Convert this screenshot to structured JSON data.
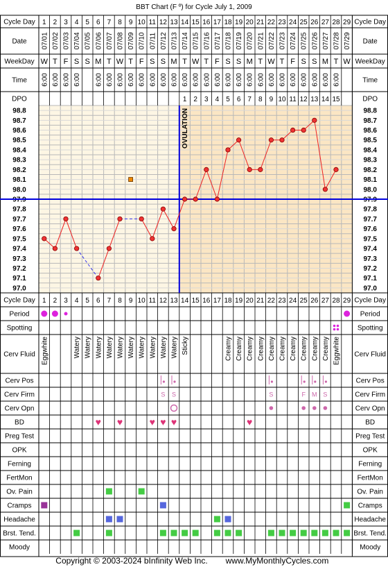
{
  "title": "BBT Chart (F º) for Cycle July 1, 2009",
  "footer": {
    "copyright": "Copyright © 2003-2024 bInfinity Web Inc.",
    "site": "www.MyMonthlyCycles.com"
  },
  "row_labels": {
    "cycle_day": "Cycle Day",
    "date": "Date",
    "weekday": "WeekDay",
    "time": "Time",
    "dpo": "DPO",
    "period": "Period",
    "spotting": "Spotting",
    "cerv_fluid": "Cerv Fluid",
    "cerv_pos": "Cerv Pos",
    "cerv_firm": "Cerv Firm",
    "cerv_opn": "Cerv Opn",
    "bd": "BD",
    "preg_test": "Preg Test",
    "opk": "OPK",
    "ferning": "Ferning",
    "fertmon": "FertMon",
    "ov_pain": "Ov. Pain",
    "cramps": "Cramps",
    "headache": "Headache",
    "brst_tend": "Brst. Tend.",
    "moody": "Moody"
  },
  "ovulation_label": "OVULATION",
  "colors": {
    "grid": "#b8b8b8",
    "pre_ov_bg": "#fdf6e4",
    "post_ov_bg": "#fbe6c4",
    "line": "#ee2020",
    "point_fill": "#ee3333",
    "dashed": "#3333ee",
    "coverline": "#0000dd",
    "period": "#dd22dd",
    "heart": "#dd3377",
    "green": "#44cc44",
    "blue_box": "#5566dd",
    "purple_box": "#993399",
    "orange_box": "#ee8800",
    "cervix": "#cc66aa"
  },
  "chart_data": {
    "type": "line",
    "x": [
      1,
      2,
      3,
      4,
      5,
      6,
      7,
      8,
      9,
      10,
      11,
      12,
      13,
      14,
      15,
      16,
      17,
      18,
      19,
      20,
      21,
      22,
      23,
      24,
      25,
      26,
      27,
      28,
      29
    ],
    "dates": [
      "07/01",
      "07/02",
      "07/03",
      "07/04",
      "07/05",
      "07/06",
      "07/07",
      "07/08",
      "07/09",
      "07/10",
      "07/11",
      "07/12",
      "07/13",
      "07/14",
      "07/15",
      "07/16",
      "07/17",
      "07/18",
      "07/19",
      "07/20",
      "07/21",
      "07/22",
      "07/23",
      "07/24",
      "07/25",
      "07/26",
      "07/27",
      "07/28",
      "07/29"
    ],
    "weekdays": [
      "W",
      "T",
      "F",
      "S",
      "S",
      "M",
      "T",
      "W",
      "T",
      "F",
      "S",
      "S",
      "M",
      "T",
      "W",
      "T",
      "F",
      "S",
      "S",
      "M",
      "T",
      "W",
      "T",
      "F",
      "S",
      "S",
      "M",
      "T",
      "W"
    ],
    "times": [
      "6:00",
      "6:00",
      "6:00",
      "6:00",
      "",
      "6:00",
      "6:00",
      "6:00",
      "6:00",
      "6:00",
      "6:00",
      "6:00",
      "6:00",
      "6:00",
      "6:00",
      "6:00",
      "6:00",
      "6:00",
      "6:00",
      "6:00",
      "6:00",
      "6:00",
      "6:00",
      "6:00",
      "6:00",
      "6:00",
      "6:00",
      "6:00",
      ""
    ],
    "dpo": [
      "",
      "",
      "",
      "",
      "",
      "",
      "",
      "",
      "",
      "",
      "",
      "",
      "",
      "1",
      "2",
      "3",
      "4",
      "5",
      "6",
      "7",
      "8",
      "9",
      "10",
      "11",
      "12",
      "13",
      "14",
      "15",
      ""
    ],
    "temps": [
      97.5,
      97.4,
      97.7,
      97.4,
      null,
      97.1,
      97.4,
      97.7,
      null,
      97.7,
      97.5,
      97.8,
      97.6,
      97.9,
      97.9,
      98.2,
      97.9,
      98.4,
      98.5,
      98.2,
      98.2,
      98.5,
      98.5,
      98.6,
      98.6,
      98.7,
      98.0,
      98.2,
      null
    ],
    "dashed_segments": [
      [
        4,
        97.4,
        6,
        97.1
      ],
      [
        8,
        97.7,
        10,
        97.7
      ]
    ],
    "discarded_temps": [
      {
        "day": 9,
        "temp": 98.1
      }
    ],
    "ylim": [
      97.0,
      98.8
    ],
    "yticks": [
      "98.8",
      "98.7",
      "98.6",
      "98.5",
      "98.4",
      "98.3",
      "98.2",
      "98.1",
      "98.0",
      "97.9",
      "97.8",
      "97.7",
      "97.6",
      "97.5",
      "97.4",
      "97.3",
      "97.2",
      "97.1",
      "97.0"
    ],
    "coverline": 97.9,
    "ovulation_day": 13,
    "grid": true
  },
  "observations": {
    "period": [
      {
        "day": 1,
        "size": "large"
      },
      {
        "day": 2,
        "size": "large"
      },
      {
        "day": 3,
        "size": "small"
      },
      {
        "day": 29,
        "size": "large"
      }
    ],
    "spotting": [
      28
    ],
    "cerv_fluid": [
      "Eggwhite",
      "",
      "",
      "Watery",
      "Watery",
      "Watery",
      "Watery",
      "Watery",
      "Watery",
      "Watery",
      "Watery",
      "Watery",
      "Watery",
      "Sticky",
      "",
      "",
      "",
      "Creamy",
      "Creamy",
      "Creamy",
      "Creamy",
      "Creamy",
      "Creamy",
      "Creamy",
      "Creamy",
      "Creamy",
      "Creamy",
      "Eggwhite",
      ""
    ],
    "cerv_pos": [
      12,
      13,
      22,
      25,
      26,
      27
    ],
    "cerv_firm": [
      {
        "day": 12,
        "v": "S"
      },
      {
        "day": 13,
        "v": "S"
      },
      {
        "day": 22,
        "v": "S"
      },
      {
        "day": 25,
        "v": "F"
      },
      {
        "day": 26,
        "v": "M"
      },
      {
        "day": 27,
        "v": "S"
      }
    ],
    "cerv_opn": [
      {
        "day": 13,
        "v": "open"
      },
      {
        "day": 22,
        "v": "dot"
      },
      {
        "day": 25,
        "v": "dot"
      },
      {
        "day": 26,
        "v": "dot"
      },
      {
        "day": 27,
        "v": "dot"
      }
    ],
    "bd": [
      6,
      8,
      11,
      12,
      13,
      20
    ],
    "ov_pain": [
      7,
      10
    ],
    "cramps": [
      {
        "day": 1,
        "c": "purple"
      },
      {
        "day": 12,
        "c": "blue"
      },
      {
        "day": 29,
        "c": "green"
      }
    ],
    "headache": [
      {
        "day": 7,
        "c": "blue"
      },
      {
        "day": 8,
        "c": "blue"
      },
      {
        "day": 17,
        "c": "green"
      },
      {
        "day": 18,
        "c": "blue"
      }
    ],
    "brst_tend": [
      4,
      7,
      12,
      13,
      14,
      15,
      17,
      18,
      19,
      22,
      23,
      24,
      25,
      26,
      27,
      28,
      29
    ]
  }
}
